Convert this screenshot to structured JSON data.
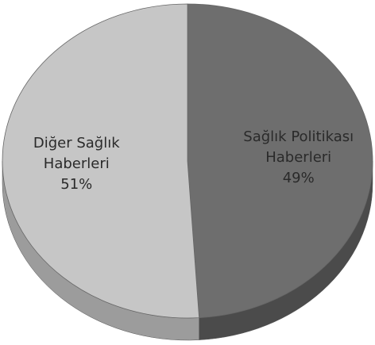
{
  "chart_data": {
    "type": "pie",
    "categories": [
      "Sağlık Politikası Haberleri",
      "Diğer Sağlık Haberleri"
    ],
    "values": [
      49,
      51
    ],
    "value_labels": [
      "49%",
      "51%"
    ],
    "colors": [
      "#6e6e6e",
      "#c6c6c6"
    ],
    "side_colors": [
      "#4b4b4b",
      "#9c9c9c"
    ]
  }
}
